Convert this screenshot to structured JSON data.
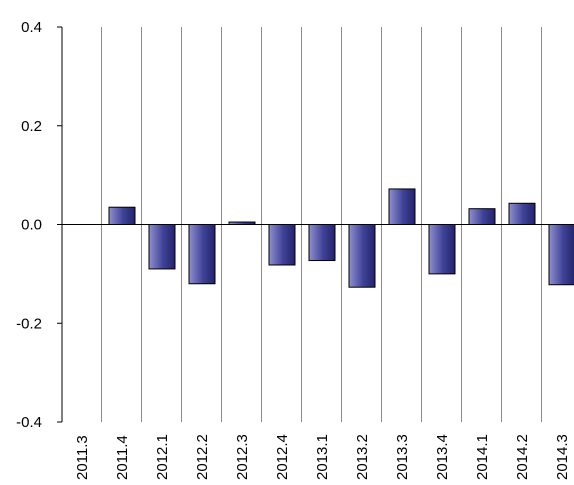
{
  "chart_data": {
    "type": "bar",
    "categories": [
      "2011.3",
      "2011.4",
      "2012.1",
      "2012.2",
      "2012.3",
      "2012.4",
      "2013.1",
      "2013.2",
      "2013.3",
      "2013.4",
      "2014.1",
      "2014.2",
      "2014.3"
    ],
    "values": [
      0.0,
      0.035,
      -0.09,
      -0.12,
      0.005,
      -0.082,
      -0.073,
      -0.127,
      0.072,
      -0.1,
      0.032,
      0.043,
      -0.122
    ],
    "title": "",
    "xlabel": "",
    "ylabel": "",
    "ylim": [
      -0.4,
      0.4
    ],
    "yticks": [
      -0.4,
      -0.2,
      0.0,
      0.2,
      0.4
    ],
    "ytick_labels": [
      "-0.4",
      "-0.2",
      "0.0",
      "0.2",
      "0.4"
    ],
    "grid": "vertical lines between categories",
    "legend": "none",
    "bar_color": "#3f4196",
    "bar_highlight": "#8f8fd0",
    "grid_color": "#8c8c8c"
  }
}
